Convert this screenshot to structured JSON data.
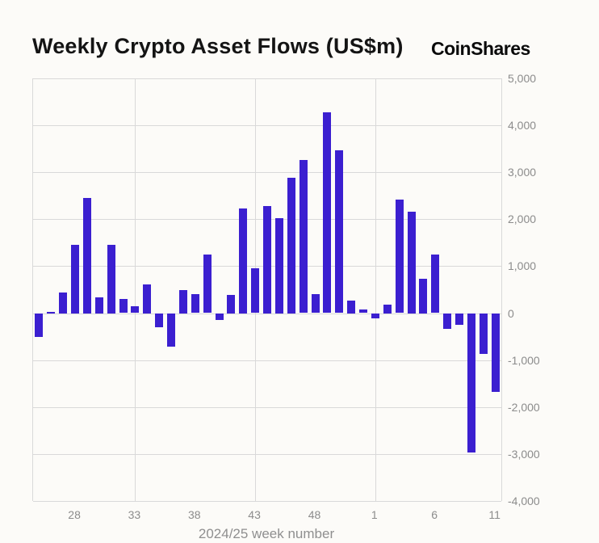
{
  "header": {
    "title": "Weekly Crypto Asset Flows (US$m)",
    "brand": "CoinShares"
  },
  "colors": {
    "bar": "#3b1fd0",
    "grid": "#d9d9d9",
    "axis_text": "#8c8c8c",
    "background": "#fcfbf8",
    "title_text": "#141414"
  },
  "chart_data": {
    "type": "bar",
    "title": "Weekly Crypto Asset Flows (US$m)",
    "xlabel": "2024/25 week number",
    "ylabel": "",
    "ylim": [
      -4000,
      5000
    ],
    "grid": true,
    "legend": false,
    "y_ticks": [
      5000,
      4000,
      3000,
      2000,
      1000,
      0,
      -1000,
      -2000,
      -3000,
      -4000
    ],
    "y_tick_labels": [
      "5,000",
      "4,000",
      "3,000",
      "2,000",
      "1,000",
      "0",
      "-1,000",
      "-2,000",
      "-3,000",
      "-4,000"
    ],
    "categories": [
      "25",
      "26",
      "27",
      "28",
      "29",
      "30",
      "31",
      "32",
      "33",
      "34",
      "35",
      "36",
      "37",
      "38",
      "39",
      "40",
      "41",
      "42",
      "43",
      "44",
      "45",
      "46",
      "47",
      "48",
      "49",
      "50",
      "51",
      "52",
      "1",
      "2",
      "3",
      "4",
      "5",
      "6",
      "7",
      "8",
      "9",
      "10",
      "11"
    ],
    "values": [
      -500,
      20,
      440,
      1450,
      2450,
      330,
      1450,
      300,
      150,
      620,
      -300,
      -720,
      500,
      400,
      1250,
      -150,
      390,
      2230,
      950,
      2280,
      2020,
      2880,
      3260,
      400,
      4270,
      3470,
      270,
      80,
      -110,
      180,
      2420,
      2160,
      740,
      1250,
      -340,
      -250,
      -2960,
      -870,
      -1680
    ],
    "x_tick_indices": [
      3,
      8,
      13,
      18,
      23,
      28,
      33,
      38
    ],
    "x_tick_labels": [
      "28",
      "33",
      "38",
      "43",
      "48",
      "1",
      "6",
      "11"
    ],
    "vertical_grid_indices": [
      8,
      18,
      28
    ]
  }
}
